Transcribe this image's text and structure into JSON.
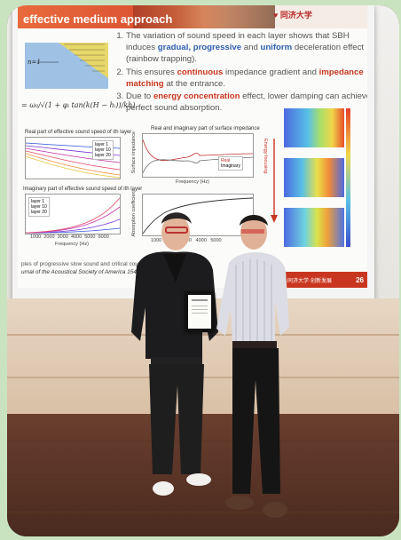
{
  "slide": {
    "title": "effective medium approach",
    "logo_text": "同济大学",
    "equation": "= ω₀/√(1 + φᵢ tan(k(H − hᵢ))/kh)",
    "diagram_label": "n=1",
    "points": [
      {
        "n": "1.",
        "pre": "The variation of sound speed in each layer shows that SBH induces ",
        "hl1": "gradual, progressive",
        "mid": " and ",
        "hl2": "uniform",
        "post": " deceleration effect (rainbow trapping)."
      },
      {
        "n": "2.",
        "pre": "This ensures ",
        "hl1": "continuous",
        "mid": " impedance gradient and ",
        "hl2": "impedance matching",
        "post": " at the entrance."
      },
      {
        "n": "3.",
        "pre": "Due to ",
        "hl1": "energy concentration",
        "mid": " effect, lower damping can achieve perfect sound absorption.",
        "hl2": "",
        "post": ""
      }
    ],
    "plot1_title": "Real part of effective sound speed of ith layer",
    "plot1_legend": [
      "layer 1",
      "layer 10",
      "layer 20"
    ],
    "plot2_title": "Imaginary part of effective sound speed of ith layer",
    "plot2_legend": [
      "layer 1",
      "layer 10",
      "layer 20"
    ],
    "plot3_title": "Real and imaginary part of surface impedance",
    "plot3_ylabel": "Surface impedance",
    "plot3_legend": [
      "Real",
      "Imaginary"
    ],
    "plot4_ylabel": "Absorption coefficient",
    "xlabel": "Frequency (Hz)",
    "xticks": [
      "1000",
      "2000",
      "3000",
      "4000",
      "5000",
      "6000"
    ],
    "arrow_label": "Energy focusing",
    "footer_line1": "ples of progressive slow sound and critical coupling ...",
    "footer_line2": "urnal of the Acoustical Society of America 154.5 (2023)",
    "page_number": "26",
    "footer_banner": "·同济大学·创新发展"
  },
  "scene": {
    "certificate": "certificate",
    "colors": {
      "background": "#c9e3c0",
      "accent": "#c9361f",
      "blue": "#2d5fb0"
    }
  }
}
